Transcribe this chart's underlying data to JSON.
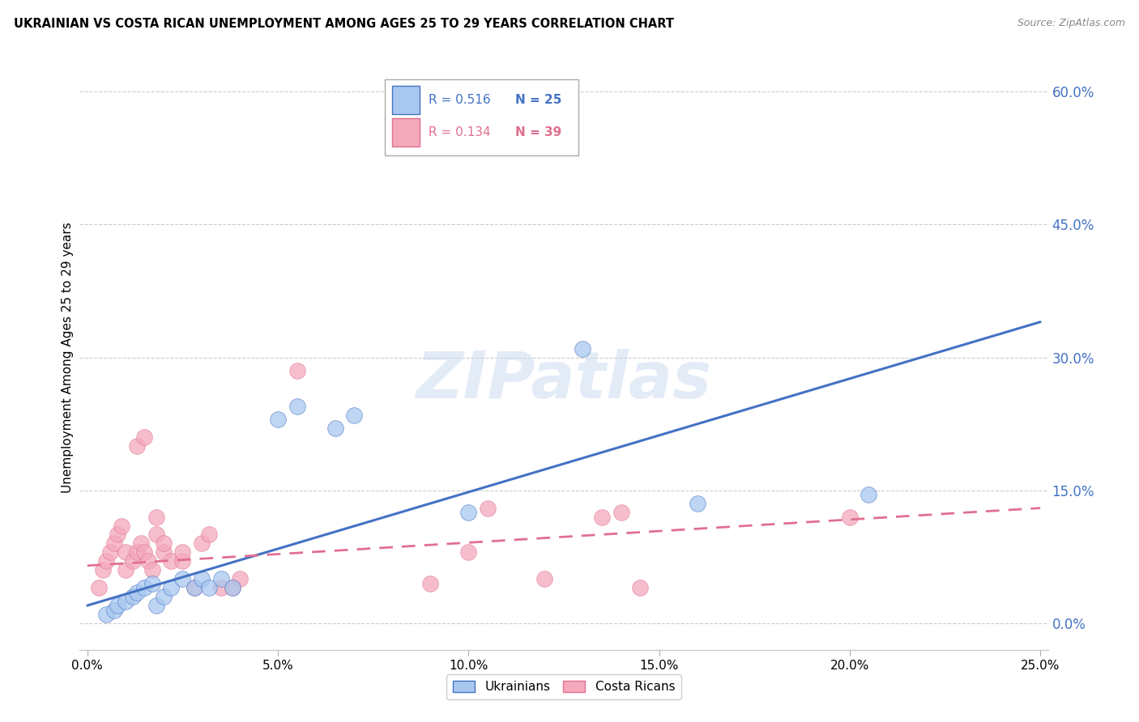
{
  "title": "UKRAINIAN VS COSTA RICAN UNEMPLOYMENT AMONG AGES 25 TO 29 YEARS CORRELATION CHART",
  "source": "Source: ZipAtlas.com",
  "ylabel": "Unemployment Among Ages 25 to 29 years",
  "xlim": [
    -0.002,
    0.252
  ],
  "ylim": [
    -0.03,
    0.63
  ],
  "xticks": [
    0.0,
    0.05,
    0.1,
    0.15,
    0.2,
    0.25
  ],
  "xtick_labels": [
    "0.0%",
    "5.0%",
    "10.0%",
    "15.0%",
    "20.0%",
    "25.0%"
  ],
  "yticks_right": [
    0.0,
    0.15,
    0.3,
    0.45,
    0.6
  ],
  "ytick_labels_right": [
    "0.0%",
    "15.0%",
    "30.0%",
    "45.0%",
    "60.0%"
  ],
  "blue_color": "#A8C8F0",
  "pink_color": "#F4A8BC",
  "trend_blue": "#4472C4",
  "trend_pink": "#E07090",
  "legend_R_blue": "R = 0.516",
  "legend_N_blue": "N = 25",
  "legend_R_pink": "R = 0.134",
  "legend_N_pink": "N = 39",
  "watermark": "ZIPatlas",
  "legend_label_blue": "Ukrainians",
  "legend_label_pink": "Costa Ricans",
  "blue_scatter_x": [
    0.005,
    0.007,
    0.008,
    0.01,
    0.012,
    0.013,
    0.015,
    0.017,
    0.018,
    0.02,
    0.022,
    0.025,
    0.028,
    0.03,
    0.032,
    0.035,
    0.038,
    0.05,
    0.055,
    0.065,
    0.07,
    0.1,
    0.13,
    0.16,
    0.205
  ],
  "blue_scatter_y": [
    0.01,
    0.015,
    0.02,
    0.025,
    0.03,
    0.035,
    0.04,
    0.045,
    0.02,
    0.03,
    0.04,
    0.05,
    0.04,
    0.05,
    0.04,
    0.05,
    0.04,
    0.23,
    0.245,
    0.22,
    0.235,
    0.125,
    0.31,
    0.135,
    0.145
  ],
  "pink_scatter_x": [
    0.003,
    0.004,
    0.005,
    0.006,
    0.007,
    0.008,
    0.009,
    0.01,
    0.01,
    0.012,
    0.013,
    0.013,
    0.014,
    0.015,
    0.015,
    0.016,
    0.017,
    0.018,
    0.018,
    0.02,
    0.02,
    0.022,
    0.025,
    0.025,
    0.028,
    0.03,
    0.032,
    0.035,
    0.038,
    0.04,
    0.055,
    0.09,
    0.1,
    0.105,
    0.12,
    0.135,
    0.14,
    0.145,
    0.2
  ],
  "pink_scatter_y": [
    0.04,
    0.06,
    0.07,
    0.08,
    0.09,
    0.1,
    0.11,
    0.06,
    0.08,
    0.07,
    0.08,
    0.2,
    0.09,
    0.08,
    0.21,
    0.07,
    0.06,
    0.1,
    0.12,
    0.08,
    0.09,
    0.07,
    0.07,
    0.08,
    0.04,
    0.09,
    0.1,
    0.04,
    0.04,
    0.05,
    0.285,
    0.045,
    0.08,
    0.13,
    0.05,
    0.12,
    0.125,
    0.04,
    0.12
  ],
  "blue_trend_x": [
    0.0,
    0.25
  ],
  "blue_trend_y": [
    0.02,
    0.34
  ],
  "pink_trend_x": [
    0.0,
    0.25
  ],
  "pink_trend_y": [
    0.065,
    0.13
  ],
  "background_color": "#FFFFFF",
  "grid_color": "#CCCCCC"
}
